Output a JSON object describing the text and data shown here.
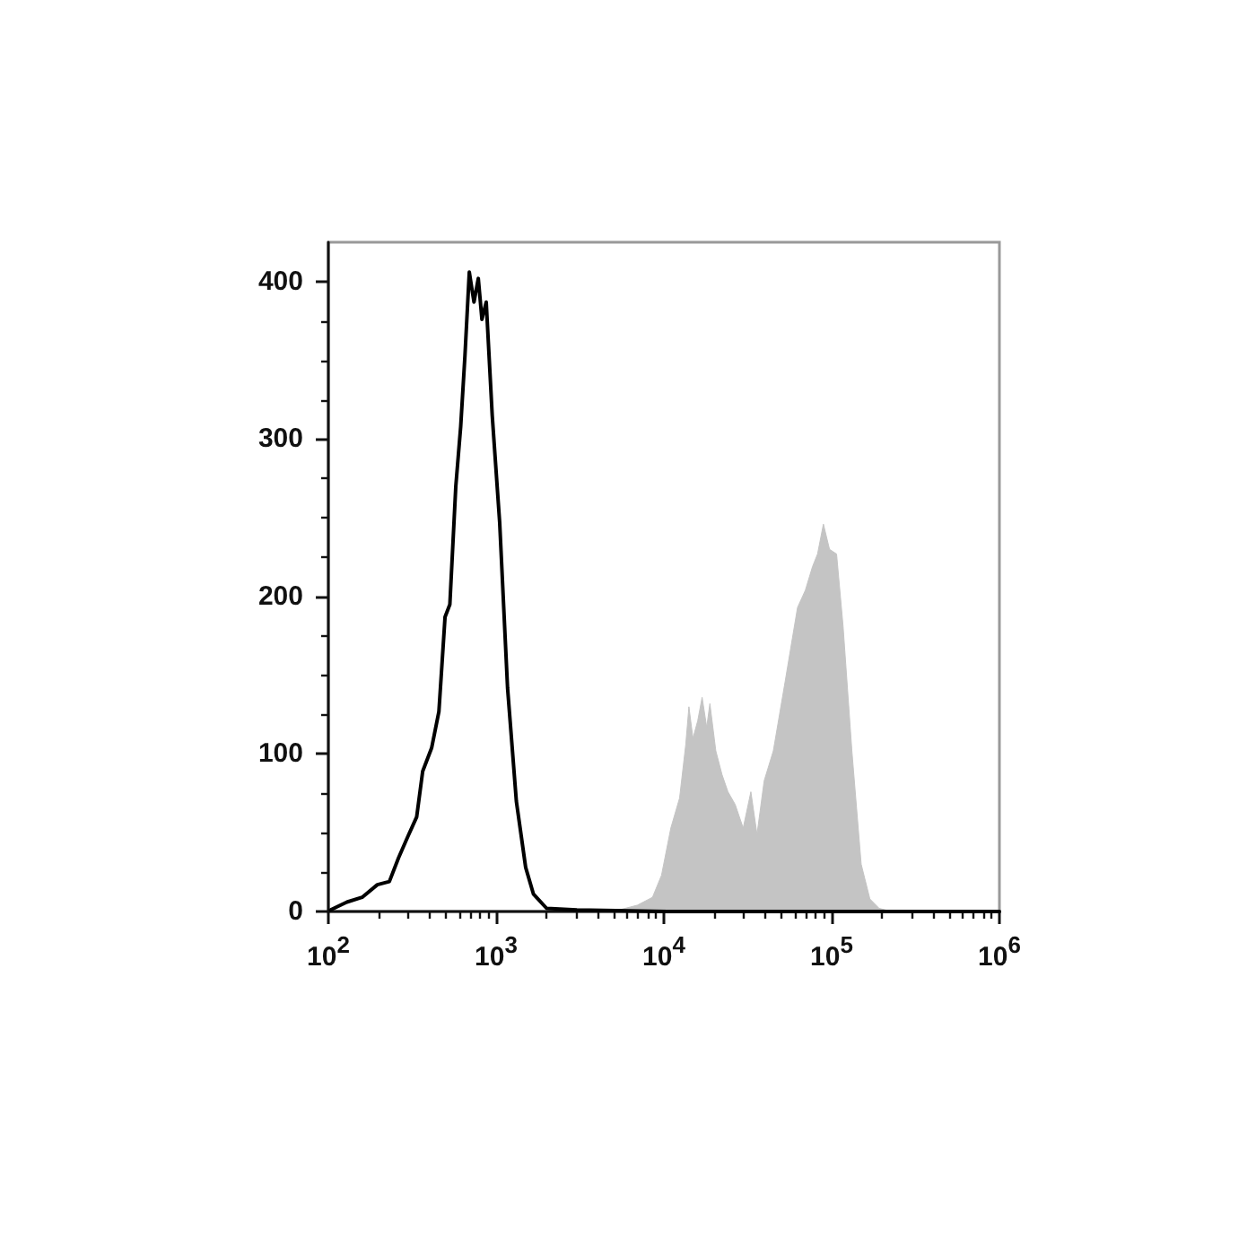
{
  "chart_data": {
    "type": "line",
    "log": "x",
    "xlim": [
      100,
      1000000
    ],
    "ylim": [
      0,
      425
    ],
    "xticks": [
      {
        "value": 100,
        "label": "10$^{2}$"
      },
      {
        "value": 200,
        "label": null
      },
      {
        "value": 300,
        "label": null
      },
      {
        "value": 400,
        "label": null
      },
      {
        "value": 500,
        "label": null
      },
      {
        "value": 600,
        "label": null
      },
      {
        "value": 700,
        "label": null
      },
      {
        "value": 800,
        "label": null
      },
      {
        "value": 900,
        "label": null
      },
      {
        "value": 1000,
        "label": "10$^{3}$"
      },
      {
        "value": 2000,
        "label": null
      },
      {
        "value": 3000,
        "label": null
      },
      {
        "value": 4000,
        "label": null
      },
      {
        "value": 5000,
        "label": null
      },
      {
        "value": 6000,
        "label": null
      },
      {
        "value": 7000,
        "label": null
      },
      {
        "value": 8000,
        "label": null
      },
      {
        "value": 9000,
        "label": null
      },
      {
        "value": 10000,
        "label": "10$^{4}$"
      },
      {
        "value": 20000,
        "label": null
      },
      {
        "value": 30000,
        "label": null
      },
      {
        "value": 40000,
        "label": null
      },
      {
        "value": 50000,
        "label": null
      },
      {
        "value": 60000,
        "label": null
      },
      {
        "value": 70000,
        "label": null
      },
      {
        "value": 80000,
        "label": null
      },
      {
        "value": 90000,
        "label": null
      },
      {
        "value": 100000,
        "label": "10$^{5}$"
      },
      {
        "value": 200000,
        "label": null
      },
      {
        "value": 300000,
        "label": null
      },
      {
        "value": 400000,
        "label": null
      },
      {
        "value": 500000,
        "label": null
      },
      {
        "value": 600000,
        "label": null
      },
      {
        "value": 700000,
        "label": null
      },
      {
        "value": 800000,
        "label": null
      },
      {
        "value": 900000,
        "label": null
      },
      {
        "value": 1000000,
        "label": "10$^{6}$"
      }
    ],
    "yticks": [
      0,
      {
        "value": 25,
        "label": null
      },
      {
        "value": 50,
        "label": null
      },
      {
        "value": 75,
        "label": null
      },
      100,
      {
        "value": 125,
        "label": null
      },
      {
        "value": 150,
        "label": null
      },
      {
        "value": 175,
        "label": null
      },
      200,
      {
        "value": 225,
        "label": null
      },
      {
        "value": 250,
        "label": null
      },
      {
        "value": 275,
        "label": null
      },
      300,
      {
        "value": 325,
        "label": null
      },
      {
        "value": 350,
        "label": null
      },
      {
        "value": 375,
        "label": null
      },
      400
    ],
    "grid": false,
    "marker": "none",
    "line_style": "solid",
    "series": [
      {
        "color": "#000000",
        "x": [
          103,
          129,
          159,
          196,
          231,
          262,
          296,
          336,
          365,
          413,
          456,
          496,
          530,
          575,
          615,
          652,
          692,
          738,
          783,
          823,
          873,
          948,
          1050,
          1170,
          1320,
          1500,
          1670,
          2000,
          3030,
          10500,
          1000000
        ],
        "values": [
          1,
          6,
          9,
          17,
          19,
          34,
          47,
          60,
          89,
          104,
          127,
          187,
          195,
          270,
          308,
          353,
          406,
          387,
          402,
          376,
          387,
          315,
          247,
          142,
          70,
          28,
          11,
          2,
          1,
          0,
          0
        ]
      },
      {
        "type": "area",
        "color": "#c4c4c4",
        "x": [
          5410,
          6940,
          8550,
          9680,
          11000,
          12400,
          13500,
          14100,
          14900,
          15900,
          16900,
          18000,
          18800,
          20400,
          22200,
          24100,
          26600,
          29700,
          33000,
          35900,
          39600,
          44900,
          53000,
          62600,
          69700,
          76900,
          82400,
          89300,
          97100,
          107000,
          117000,
          132000,
          150000,
          169000,
          192000,
          227000
        ],
        "values": [
          1,
          4,
          9,
          23,
          53,
          72,
          106,
          130,
          110,
          121,
          136,
          117,
          132,
          102,
          87,
          76,
          68,
          53,
          76,
          49,
          83,
          102,
          147,
          193,
          204,
          219,
          227,
          246,
          230,
          227,
          181,
          102,
          30,
          8,
          2,
          0
        ]
      }
    ]
  }
}
